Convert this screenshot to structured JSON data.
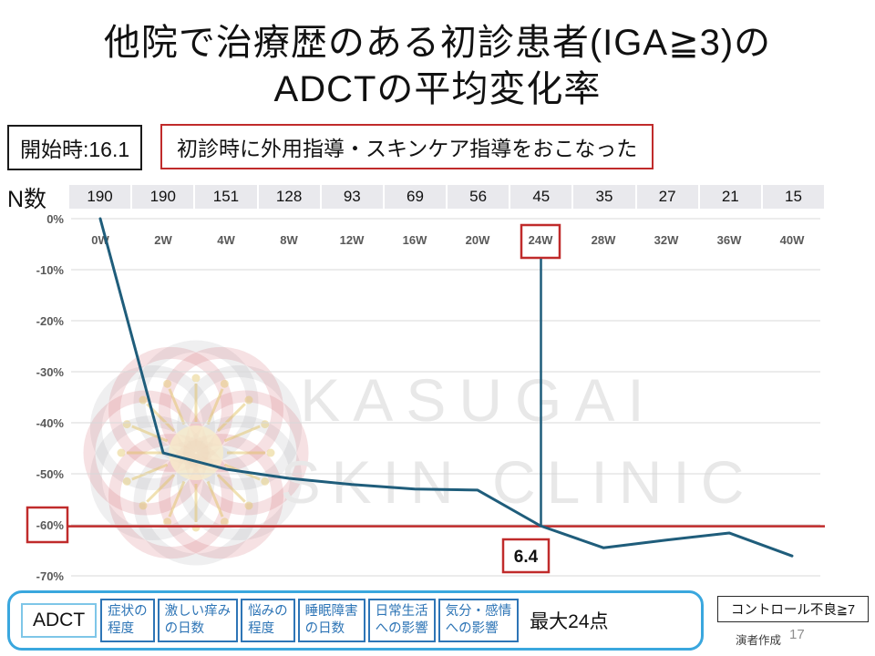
{
  "title": {
    "line1": "他院で治療歴のある初診患者(IGA≧3)の",
    "line2": "ADCTの平均変化率"
  },
  "annotations": {
    "start_box": "開始時:16.1",
    "guidance_box": "初診時に外用指導・スキンケア指導をおこなった",
    "n_label": "N数",
    "point_value_label": "6.4",
    "control_box": "コントロール不良≧7",
    "credit": "演者作成",
    "page_number": "17"
  },
  "watermark": {
    "line1": "KASUGAI",
    "line2": "SKIN CLINIC"
  },
  "chart_data": {
    "type": "line",
    "title": "ADCTの平均変化率",
    "categories": [
      "0W",
      "2W",
      "4W",
      "8W",
      "12W",
      "16W",
      "20W",
      "24W",
      "28W",
      "32W",
      "36W",
      "40W"
    ],
    "n_values": [
      190,
      190,
      151,
      128,
      93,
      69,
      56,
      45,
      35,
      27,
      21,
      15
    ],
    "series": [
      {
        "name": "ADCT平均変化率(%)",
        "values": [
          0,
          -45.9,
          -49.1,
          -50.9,
          -52.1,
          -53.0,
          -53.2,
          -60.2,
          -64.5,
          -63.0,
          -61.6,
          -66.1
        ]
      }
    ],
    "ylim": [
      -70,
      0
    ],
    "yticks": [
      "0%",
      "-10%",
      "-20%",
      "-30%",
      "-40%",
      "-50%",
      "-60%",
      "-70%"
    ],
    "grid": true,
    "reference_line": {
      "value": -60.3,
      "label": "-60%"
    },
    "highlight_category": "24W",
    "highlight_ytick": "-60%",
    "point_label": {
      "category": "24W",
      "text": "6.4"
    }
  },
  "legend": {
    "adct_label": "ADCT",
    "items": [
      {
        "line1": "症状の",
        "line2": "程度"
      },
      {
        "line1": "激しい痒み",
        "line2": "の日数"
      },
      {
        "line1": "悩みの",
        "line2": "程度"
      },
      {
        "line1": "睡眠障害",
        "line2": "の日数"
      },
      {
        "line1": "日常生活",
        "line2": "への影響"
      },
      {
        "line1": "気分・感情",
        "line2": "への影響"
      }
    ],
    "max_label": "最大24点"
  },
  "colors": {
    "line_blue": "#1f5d7b",
    "accent_red": "#c02b2b",
    "tick_gray": "#595959",
    "gridline_gray": "#d9d9d9",
    "n_band_gray": "#e9e9ed",
    "legend_outer_blue": "#3aa7de",
    "legend_item_blue": "#2e75b6",
    "watermark_gray": "#e8e8e8",
    "flower_pink": "#d26a74",
    "flower_yellow": "#e3c568"
  }
}
